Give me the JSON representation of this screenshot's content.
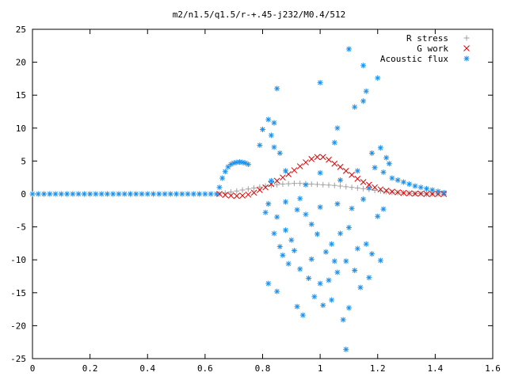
{
  "chart_data": {
    "type": "scatter",
    "title": "m2/n1.5/q1.5/r-+.45-j232/M0.4/512",
    "xlabel": "",
    "ylabel": "",
    "xlim": [
      0,
      1.6
    ],
    "ylim": [
      -25,
      25
    ],
    "x_ticks": [
      0,
      0.2,
      0.4,
      0.6,
      0.8,
      1,
      1.2,
      1.4,
      1.6
    ],
    "y_ticks": [
      -25,
      -20,
      -15,
      -10,
      -5,
      0,
      5,
      10,
      15,
      20,
      25
    ],
    "grid": false,
    "legend_position": "top-right",
    "series": [
      {
        "name": "R stress",
        "marker": "plus",
        "color": "#a0a0a0",
        "points": [
          [
            0.65,
            0.0
          ],
          [
            0.67,
            0.15
          ],
          [
            0.69,
            0.3
          ],
          [
            0.71,
            0.45
          ],
          [
            0.73,
            0.6
          ],
          [
            0.75,
            0.75
          ],
          [
            0.77,
            0.9
          ],
          [
            0.79,
            1.05
          ],
          [
            0.81,
            1.2
          ],
          [
            0.83,
            1.3
          ],
          [
            0.85,
            1.4
          ],
          [
            0.87,
            1.5
          ],
          [
            0.89,
            1.55
          ],
          [
            0.91,
            1.6
          ],
          [
            0.93,
            1.6
          ],
          [
            0.95,
            1.55
          ],
          [
            0.97,
            1.5
          ],
          [
            0.99,
            1.45
          ],
          [
            1.01,
            1.4
          ],
          [
            1.03,
            1.35
          ],
          [
            1.05,
            1.3
          ],
          [
            1.07,
            1.2
          ],
          [
            1.09,
            1.1
          ],
          [
            1.11,
            1.0
          ],
          [
            1.13,
            0.9
          ],
          [
            1.15,
            0.8
          ],
          [
            1.17,
            0.7
          ],
          [
            1.19,
            0.55
          ],
          [
            1.21,
            0.45
          ],
          [
            1.23,
            0.35
          ],
          [
            1.25,
            0.25
          ],
          [
            1.27,
            0.2
          ],
          [
            1.29,
            0.15
          ],
          [
            1.31,
            0.1
          ],
          [
            1.33,
            0.05
          ],
          [
            1.35,
            0.05
          ],
          [
            1.37,
            0.0
          ],
          [
            1.39,
            0.0
          ],
          [
            1.41,
            0.0
          ],
          [
            1.43,
            0.0
          ]
        ]
      },
      {
        "name": "G work",
        "marker": "cross",
        "color": "#e00000",
        "points": [
          [
            0.65,
            0.0
          ],
          [
            0.67,
            -0.15
          ],
          [
            0.69,
            -0.25
          ],
          [
            0.71,
            -0.3
          ],
          [
            0.73,
            -0.25
          ],
          [
            0.75,
            -0.1
          ],
          [
            0.77,
            0.2
          ],
          [
            0.79,
            0.6
          ],
          [
            0.81,
            1.0
          ],
          [
            0.83,
            1.5
          ],
          [
            0.85,
            2.0
          ],
          [
            0.87,
            2.5
          ],
          [
            0.89,
            3.0
          ],
          [
            0.91,
            3.6
          ],
          [
            0.93,
            4.2
          ],
          [
            0.95,
            4.8
          ],
          [
            0.97,
            5.3
          ],
          [
            0.99,
            5.6
          ],
          [
            1.01,
            5.6
          ],
          [
            1.03,
            5.2
          ],
          [
            1.05,
            4.6
          ],
          [
            1.07,
            4.1
          ],
          [
            1.09,
            3.5
          ],
          [
            1.11,
            2.9
          ],
          [
            1.13,
            2.3
          ],
          [
            1.15,
            1.8
          ],
          [
            1.17,
            1.4
          ],
          [
            1.19,
            1.0
          ],
          [
            1.21,
            0.7
          ],
          [
            1.23,
            0.5
          ],
          [
            1.25,
            0.35
          ],
          [
            1.27,
            0.25
          ],
          [
            1.29,
            0.15
          ],
          [
            1.31,
            0.1
          ],
          [
            1.33,
            0.05
          ],
          [
            1.35,
            0.05
          ],
          [
            1.37,
            0.0
          ],
          [
            1.39,
            0.0
          ],
          [
            1.41,
            0.0
          ],
          [
            1.43,
            0.0
          ]
        ]
      },
      {
        "name": "Acoustic flux",
        "marker": "star",
        "color": "#1e90e8",
        "points": [
          [
            0.0,
            0.0
          ],
          [
            0.02,
            0.0
          ],
          [
            0.04,
            0.0
          ],
          [
            0.06,
            0.0
          ],
          [
            0.08,
            0.0
          ],
          [
            0.1,
            0.0
          ],
          [
            0.12,
            0.0
          ],
          [
            0.14,
            0.0
          ],
          [
            0.16,
            0.0
          ],
          [
            0.18,
            0.0
          ],
          [
            0.2,
            0.0
          ],
          [
            0.22,
            0.0
          ],
          [
            0.24,
            0.0
          ],
          [
            0.26,
            0.0
          ],
          [
            0.28,
            0.0
          ],
          [
            0.3,
            0.0
          ],
          [
            0.32,
            0.0
          ],
          [
            0.34,
            0.0
          ],
          [
            0.36,
            0.0
          ],
          [
            0.38,
            0.0
          ],
          [
            0.4,
            0.0
          ],
          [
            0.42,
            0.0
          ],
          [
            0.44,
            0.0
          ],
          [
            0.46,
            0.0
          ],
          [
            0.48,
            0.0
          ],
          [
            0.5,
            0.0
          ],
          [
            0.52,
            0.0
          ],
          [
            0.54,
            0.0
          ],
          [
            0.56,
            0.0
          ],
          [
            0.58,
            0.0
          ],
          [
            0.6,
            0.0
          ],
          [
            0.62,
            0.0
          ],
          [
            0.64,
            0.0
          ],
          [
            0.65,
            1.0
          ],
          [
            0.66,
            2.4
          ],
          [
            0.67,
            3.4
          ],
          [
            0.68,
            4.1
          ],
          [
            0.69,
            4.5
          ],
          [
            0.7,
            4.7
          ],
          [
            0.71,
            4.8
          ],
          [
            0.72,
            4.85
          ],
          [
            0.73,
            4.8
          ],
          [
            0.74,
            4.7
          ],
          [
            0.75,
            4.5
          ],
          [
            1.25,
            2.4
          ],
          [
            1.27,
            2.1
          ],
          [
            1.29,
            1.8
          ],
          [
            1.31,
            1.5
          ],
          [
            1.33,
            1.2
          ],
          [
            1.35,
            1.0
          ],
          [
            1.37,
            0.8
          ],
          [
            1.39,
            0.6
          ],
          [
            1.41,
            0.4
          ],
          [
            1.43,
            0.2
          ],
          [
            1.1,
            22
          ],
          [
            1.15,
            19.5
          ],
          [
            1.2,
            17.6
          ],
          [
            0.85,
            16
          ],
          [
            1.0,
            16.9
          ],
          [
            1.16,
            15.6
          ],
          [
            1.15,
            14.1
          ],
          [
            1.12,
            13.2
          ],
          [
            0.8,
            9.8
          ],
          [
            0.83,
            8.9
          ],
          [
            0.82,
            11.3
          ],
          [
            0.84,
            10.8
          ],
          [
            0.79,
            7.4
          ],
          [
            0.84,
            7.1
          ],
          [
            0.86,
            6.2
          ],
          [
            1.06,
            10.0
          ],
          [
            1.05,
            7.8
          ],
          [
            1.18,
            6.2
          ],
          [
            1.21,
            7.0
          ],
          [
            1.23,
            5.5
          ],
          [
            1.19,
            4.0
          ],
          [
            1.22,
            3.3
          ],
          [
            1.24,
            4.6
          ],
          [
            0.82,
            -1.5
          ],
          [
            0.81,
            -2.8
          ],
          [
            0.85,
            -3.5
          ],
          [
            0.84,
            -6.0
          ],
          [
            0.88,
            -5.5
          ],
          [
            0.9,
            -7.0
          ],
          [
            0.92,
            -2.4
          ],
          [
            0.95,
            -3.1
          ],
          [
            0.97,
            -4.6
          ],
          [
            0.99,
            -6.1
          ],
          [
            1.02,
            -8.8
          ],
          [
            1.04,
            -7.6
          ],
          [
            1.07,
            -6.0
          ],
          [
            1.1,
            -5.1
          ],
          [
            1.13,
            -8.3
          ],
          [
            1.16,
            -7.6
          ],
          [
            1.18,
            -9.1
          ],
          [
            1.2,
            -3.4
          ],
          [
            1.22,
            -2.3
          ],
          [
            0.87,
            -9.3
          ],
          [
            0.89,
            -10.6
          ],
          [
            0.93,
            -11.4
          ],
          [
            0.96,
            -12.8
          ],
          [
            1.0,
            -13.6
          ],
          [
            1.03,
            -13.1
          ],
          [
            1.06,
            -11.9
          ],
          [
            1.09,
            -10.2
          ],
          [
            1.12,
            -11.6
          ],
          [
            1.14,
            -14.2
          ],
          [
            0.82,
            -13.6
          ],
          [
            0.85,
            -14.8
          ],
          [
            0.92,
            -17.1
          ],
          [
            0.94,
            -18.4
          ],
          [
            0.98,
            -15.6
          ],
          [
            1.01,
            -16.9
          ],
          [
            1.04,
            -16.1
          ],
          [
            1.08,
            -19.1
          ],
          [
            1.1,
            -17.3
          ],
          [
            1.09,
            -23.6
          ],
          [
            0.86,
            -8.0
          ],
          [
            0.91,
            -8.6
          ],
          [
            0.97,
            -9.9
          ],
          [
            1.05,
            -10.2
          ],
          [
            1.17,
            -12.7
          ],
          [
            1.21,
            -10.1
          ],
          [
            0.88,
            -1.2
          ],
          [
            0.93,
            -0.7
          ],
          [
            1.0,
            -2.0
          ],
          [
            1.06,
            -1.5
          ],
          [
            1.11,
            -2.2
          ],
          [
            1.15,
            -0.8
          ],
          [
            0.83,
            2.0
          ],
          [
            0.88,
            3.5
          ],
          [
            0.95,
            1.4
          ],
          [
            1.0,
            3.2
          ],
          [
            1.07,
            2.1
          ],
          [
            1.13,
            3.5
          ],
          [
            1.17,
            0.9
          ]
        ]
      }
    ]
  }
}
